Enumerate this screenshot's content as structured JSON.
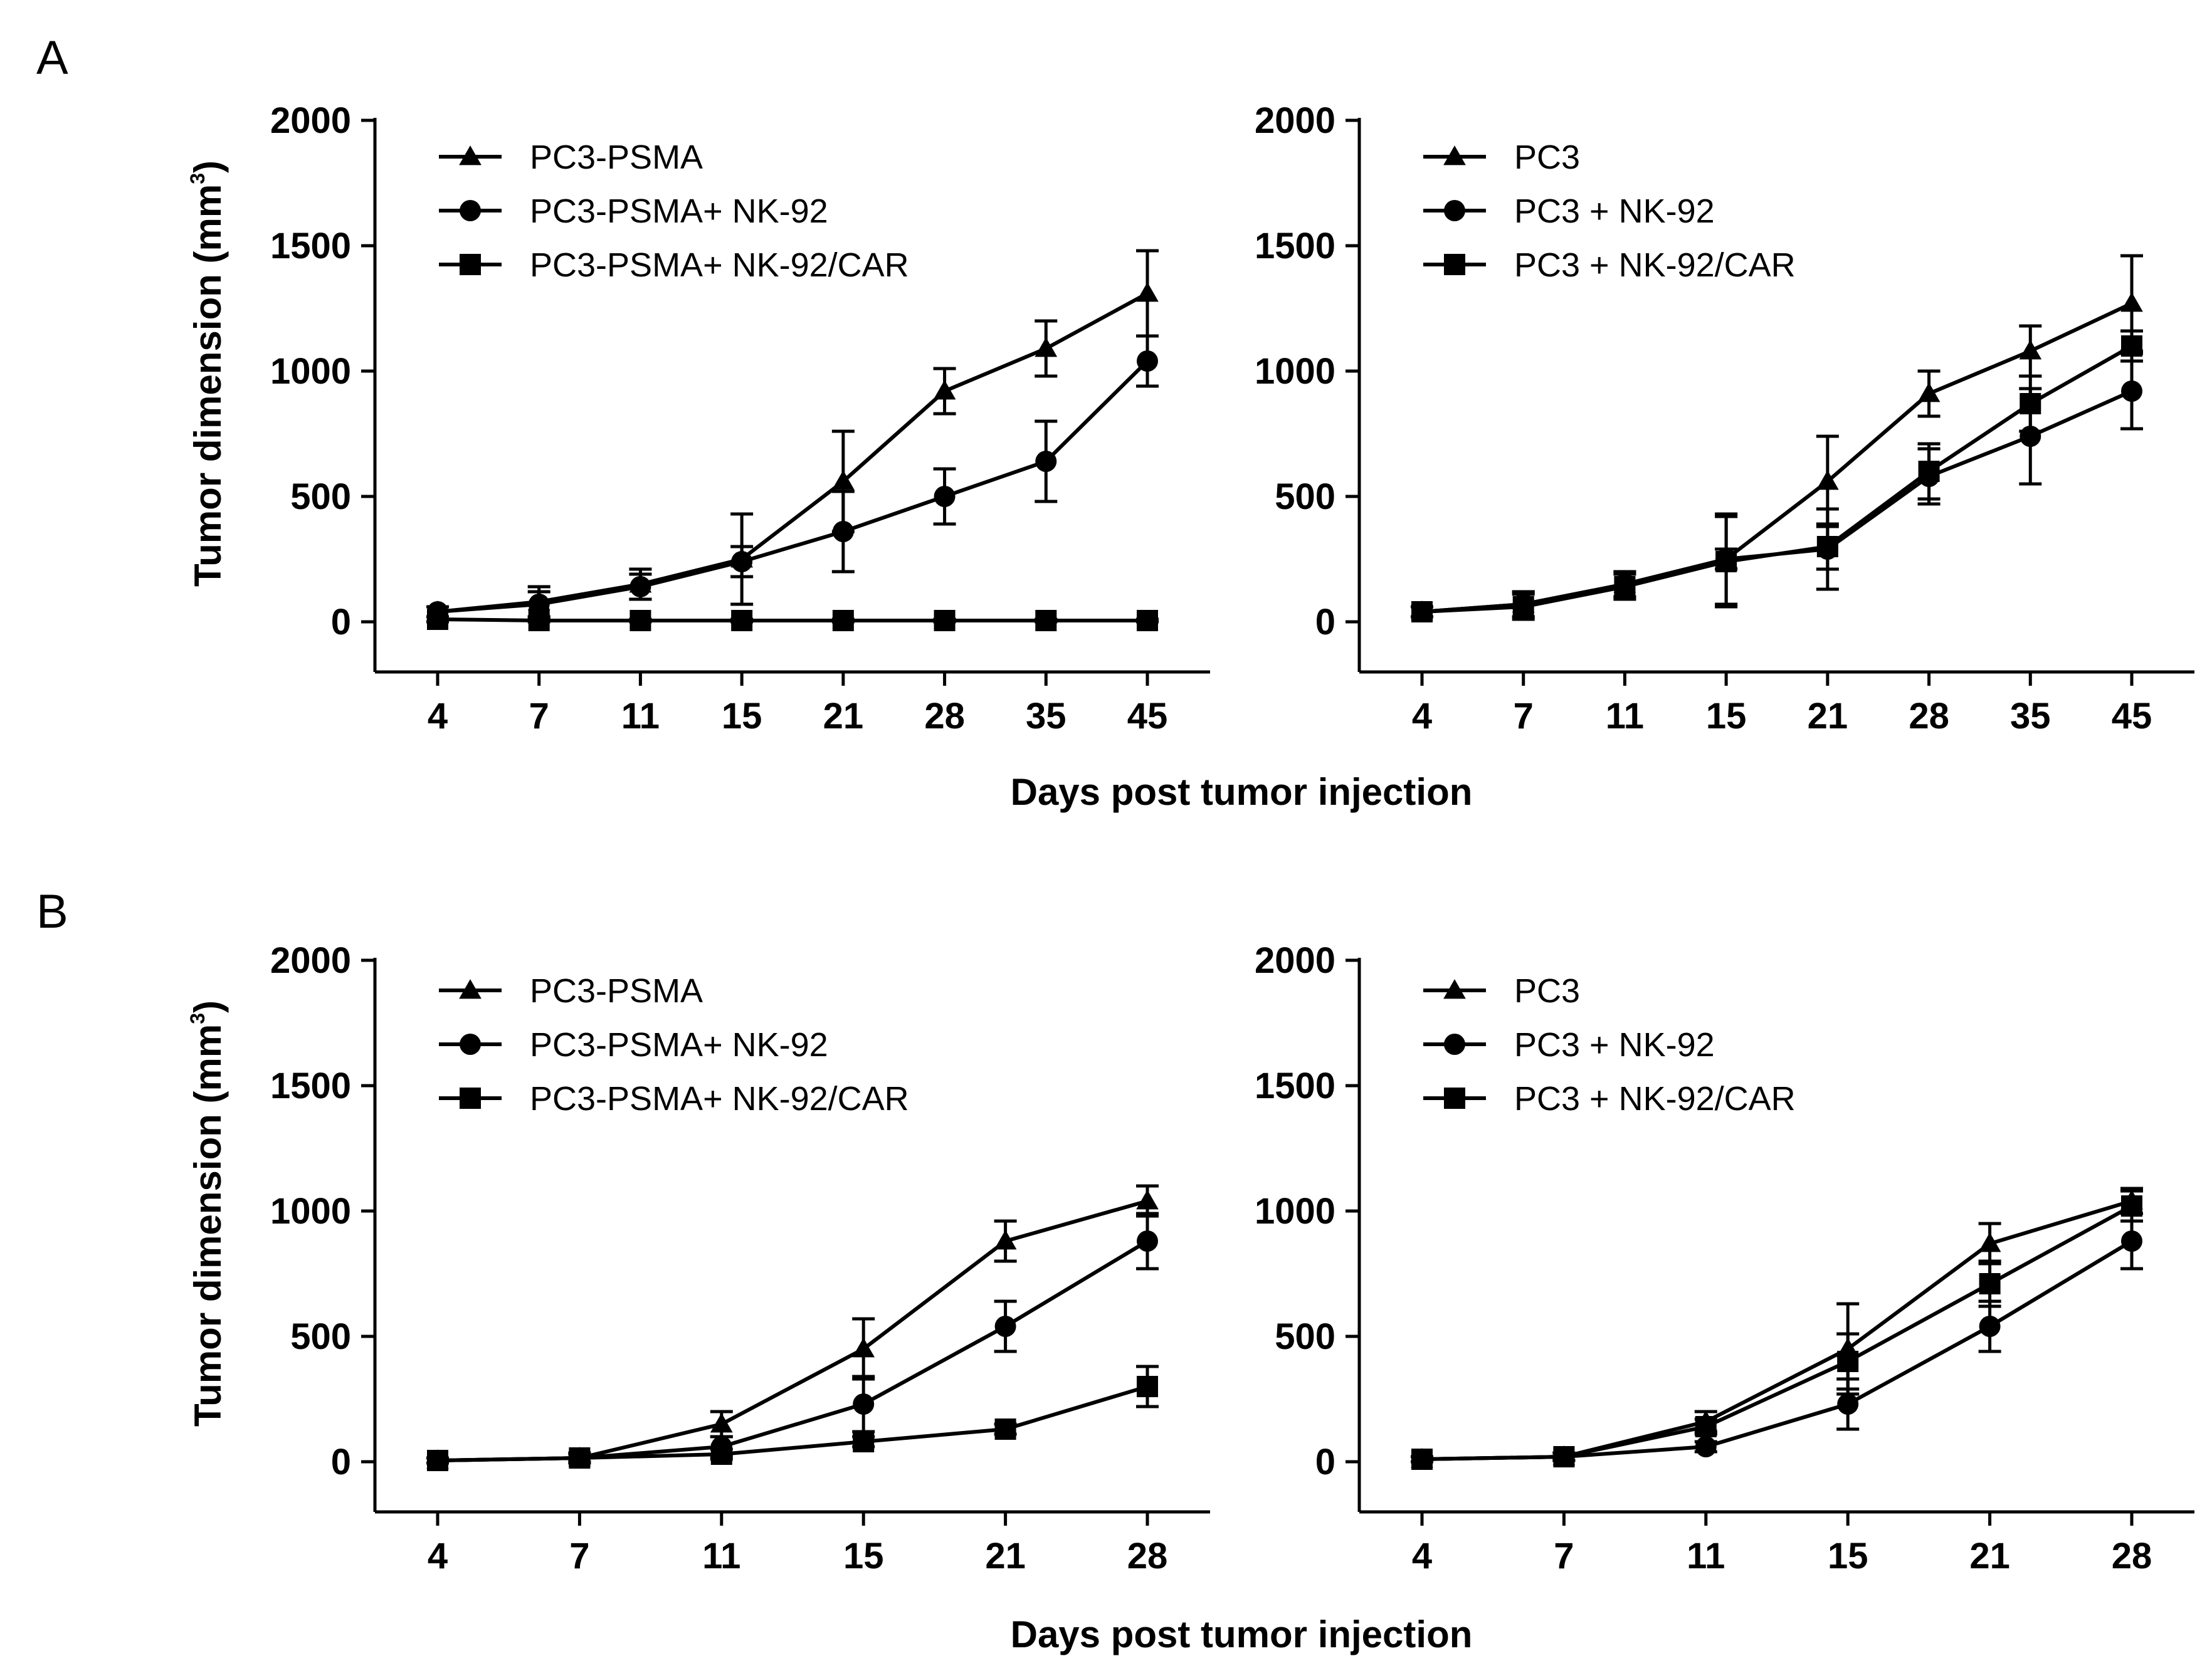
{
  "figure": {
    "panel_labels": [
      "A",
      "B"
    ],
    "shared_xlabel": "Days post tumor injection",
    "ylabel_main": "Tumor dimension  (mm",
    "ylabel_sup": "3",
    "ylabel_close": ")"
  },
  "chart_data": [
    {
      "id": "A-left",
      "panel": "A",
      "type": "line",
      "title": "",
      "xlabel": "Days post tumor injection",
      "ylabel": "Tumor dimension (mm3)",
      "categories": [
        "4",
        "7",
        "11",
        "15",
        "21",
        "28",
        "35",
        "45"
      ],
      "ylim": [
        -200,
        2000
      ],
      "yticks": [
        "2000",
        "1500",
        "1000",
        "500",
        "0"
      ],
      "legend_position": "top-left",
      "series": [
        {
          "name": "PC3-PSMA",
          "marker": "triangle",
          "values": [
            40,
            80,
            150,
            250,
            560,
            920,
            1090,
            1310
          ],
          "errors": [
            20,
            60,
            60,
            180,
            200,
            90,
            110,
            170
          ]
        },
        {
          "name": "PC3-PSMA+ NK-92",
          "marker": "circle",
          "values": [
            40,
            70,
            140,
            240,
            360,
            500,
            640,
            1040
          ],
          "errors": [
            20,
            50,
            50,
            60,
            160,
            110,
            160,
            100
          ]
        },
        {
          "name": "PC3-PSMA+ NK-92/CAR",
          "marker": "square",
          "values": [
            10,
            5,
            5,
            5,
            5,
            5,
            5,
            5
          ],
          "errors": [
            10,
            5,
            5,
            5,
            5,
            5,
            5,
            5
          ]
        }
      ]
    },
    {
      "id": "A-right",
      "panel": "A",
      "type": "line",
      "title": "",
      "xlabel": "Days post tumor injection",
      "ylabel": "",
      "categories": [
        "4",
        "7",
        "11",
        "15",
        "21",
        "28",
        "35",
        "45"
      ],
      "ylim": [
        -200,
        2000
      ],
      "yticks": [
        "2000",
        "1500",
        "1000",
        "500",
        "0"
      ],
      "legend_position": "top-left",
      "series": [
        {
          "name": "PC3",
          "marker": "triangle",
          "values": [
            40,
            70,
            150,
            250,
            560,
            910,
            1080,
            1270
          ],
          "errors": [
            20,
            50,
            50,
            180,
            180,
            90,
            100,
            190
          ]
        },
        {
          "name": "PC3 + NK-92",
          "marker": "circle",
          "values": [
            40,
            70,
            150,
            250,
            290,
            580,
            740,
            920
          ],
          "errors": [
            20,
            50,
            50,
            40,
            160,
            110,
            190,
            150
          ]
        },
        {
          "name": "PC3 + NK-92/CAR",
          "marker": "square",
          "values": [
            40,
            60,
            140,
            240,
            300,
            600,
            870,
            1100
          ],
          "errors": [
            20,
            50,
            50,
            180,
            90,
            110,
            110,
            60
          ]
        }
      ]
    },
    {
      "id": "B-left",
      "panel": "B",
      "type": "line",
      "title": "",
      "xlabel": "Days post tumor injection",
      "ylabel": "Tumor dimension (mm3)",
      "categories": [
        "4",
        "7",
        "11",
        "15",
        "21",
        "28"
      ],
      "ylim": [
        -200,
        2000
      ],
      "yticks": [
        "2000",
        "1500",
        "1000",
        "500",
        "0"
      ],
      "legend_position": "top-left",
      "series": [
        {
          "name": "PC3-PSMA",
          "marker": "triangle",
          "values": [
            5,
            15,
            150,
            450,
            880,
            1040
          ],
          "errors": [
            10,
            20,
            50,
            120,
            80,
            60
          ]
        },
        {
          "name": "PC3-PSMA+ NK-92",
          "marker": "circle",
          "values": [
            5,
            15,
            60,
            230,
            540,
            880
          ],
          "errors": [
            10,
            20,
            40,
            110,
            100,
            110
          ]
        },
        {
          "name": "PC3-PSMA+ NK-92/CAR",
          "marker": "square",
          "values": [
            5,
            15,
            30,
            80,
            130,
            300
          ],
          "errors": [
            10,
            15,
            20,
            20,
            20,
            80
          ]
        }
      ]
    },
    {
      "id": "B-right",
      "panel": "B",
      "type": "line",
      "title": "",
      "xlabel": "Days post tumor injection",
      "ylabel": "",
      "categories": [
        "4",
        "7",
        "11",
        "15",
        "21",
        "28"
      ],
      "ylim": [
        -200,
        2000
      ],
      "yticks": [
        "2000",
        "1500",
        "1000",
        "500",
        "0"
      ],
      "legend_position": "top-left",
      "series": [
        {
          "name": "PC3",
          "marker": "triangle",
          "values": [
            10,
            20,
            160,
            450,
            870,
            1040
          ],
          "errors": [
            10,
            15,
            40,
            180,
            80,
            50
          ]
        },
        {
          "name": "PC3 + NK-92",
          "marker": "circle",
          "values": [
            10,
            20,
            60,
            230,
            540,
            880
          ],
          "errors": [
            10,
            15,
            20,
            100,
            100,
            110
          ]
        },
        {
          "name": "PC3 + NK-92/CAR",
          "marker": "square",
          "values": [
            10,
            20,
            140,
            400,
            710,
            1020
          ],
          "errors": [
            10,
            15,
            30,
            110,
            90,
            60
          ]
        }
      ]
    }
  ]
}
